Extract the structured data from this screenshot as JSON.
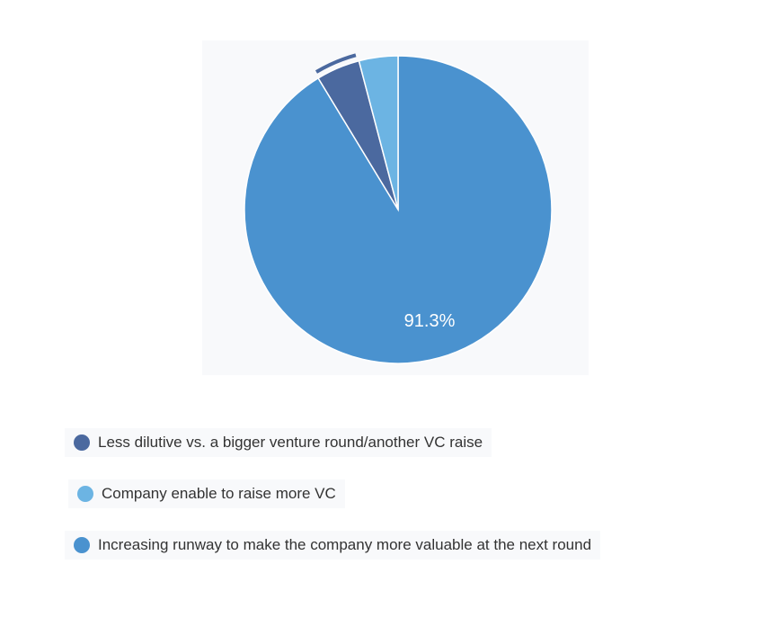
{
  "chart_data": {
    "type": "pie",
    "title": "",
    "slices": [
      {
        "label": "Increasing runway to make the company more valuable at the next round",
        "value": 91.3,
        "color": "#4a92cf",
        "data_label": "91.3%"
      },
      {
        "label": "Less dilutive vs. a bigger venture round/another VC raise",
        "value": 4.6,
        "color": "#4b699f",
        "highlighted": true
      },
      {
        "label": "Company enable to raise more VC",
        "value": 4.1,
        "color": "#6cb4e3"
      }
    ],
    "legend_order": [
      1,
      2,
      0
    ],
    "legend_placement": "bottom"
  }
}
